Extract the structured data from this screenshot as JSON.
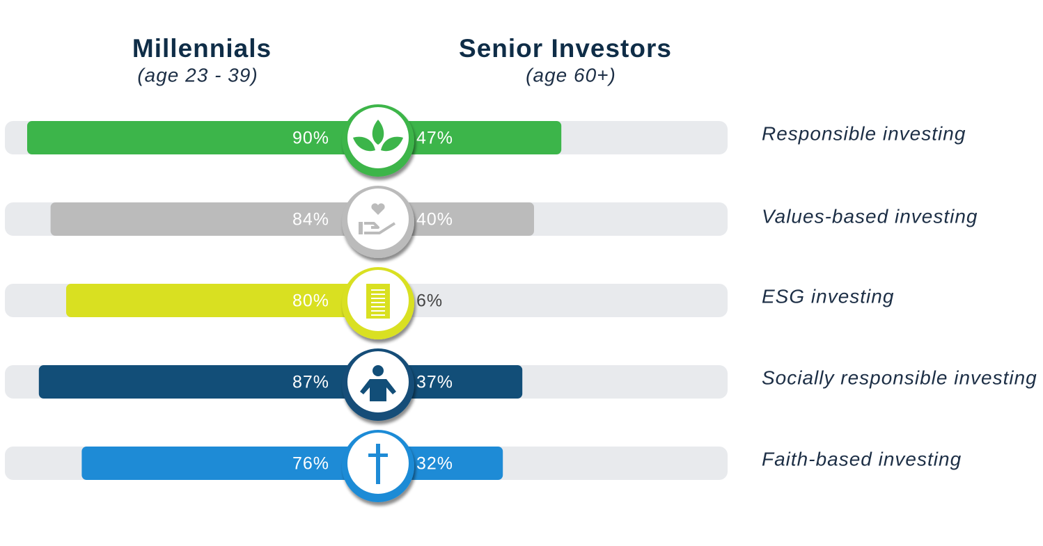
{
  "chart_data": {
    "type": "butterfly",
    "categories": [
      "Responsible investing",
      "Values-based investing",
      "ESG investing",
      "Socially responsible investing",
      "Faith-based investing"
    ],
    "colors": [
      "#3cb54a",
      "#bbbbbb",
      "#d9e021",
      "#124e78",
      "#1e8bd6"
    ],
    "series": [
      {
        "name": "Millennials",
        "subtitle": "(age 23 - 39)",
        "side": "left",
        "values": [
          90,
          84,
          80,
          87,
          76
        ],
        "value_labels": [
          "90%",
          "84%",
          "80%",
          "87%",
          "76%"
        ]
      },
      {
        "name": "Senior Investors",
        "subtitle": "(age 60+)",
        "side": "right",
        "values": [
          47,
          40,
          6,
          37,
          32
        ],
        "value_labels": [
          "47%",
          "40%",
          "6%",
          "37%",
          "32%"
        ]
      }
    ]
  }
}
